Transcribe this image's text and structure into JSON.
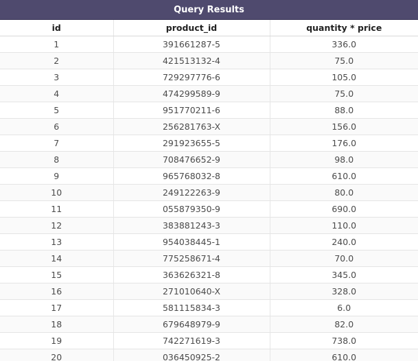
{
  "window": {
    "title": "Query Results"
  },
  "table": {
    "columns": [
      "id",
      "product_id",
      "quantity * price"
    ],
    "rows": [
      [
        "1",
        "391661287-5",
        "336.0"
      ],
      [
        "2",
        "421513132-4",
        "75.0"
      ],
      [
        "3",
        "729297776-6",
        "105.0"
      ],
      [
        "4",
        "474299589-9",
        "75.0"
      ],
      [
        "5",
        "951770211-6",
        "88.0"
      ],
      [
        "6",
        "256281763-X",
        "156.0"
      ],
      [
        "7",
        "291923655-5",
        "176.0"
      ],
      [
        "8",
        "708476652-9",
        "98.0"
      ],
      [
        "9",
        "965768032-8",
        "610.0"
      ],
      [
        "10",
        "249122263-9",
        "80.0"
      ],
      [
        "11",
        "055879350-9",
        "690.0"
      ],
      [
        "12",
        "383881243-3",
        "110.0"
      ],
      [
        "13",
        "954038445-1",
        "240.0"
      ],
      [
        "14",
        "775258671-4",
        "70.0"
      ],
      [
        "15",
        "363626321-8",
        "345.0"
      ],
      [
        "16",
        "271010640-X",
        "328.0"
      ],
      [
        "17",
        "581115834-3",
        "6.0"
      ],
      [
        "18",
        "679648979-9",
        "82.0"
      ],
      [
        "19",
        "742271619-3",
        "738.0"
      ],
      [
        "20",
        "036450925-2",
        "610.0"
      ]
    ]
  }
}
